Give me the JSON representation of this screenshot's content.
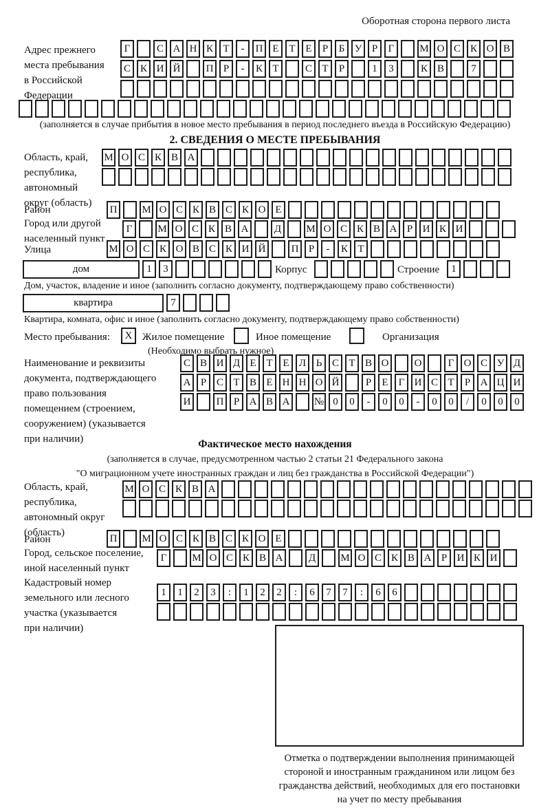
{
  "header": {
    "back_side_note": "Оборотная сторона первого листа"
  },
  "prev_address": {
    "label": "Адрес прежнего\nместа пребывания\nв Российской\nФедерации",
    "note": "(заполняется в случае прибытия в новое место пребывания в период последнего въезда в Российскую Федерацию)",
    "row1": {
      "text": "Г САНКТ-ПЕТЕРБУРГ МОСКОВ",
      "count": 24
    },
    "row2": {
      "text": "СКИЙ ПР-КТ СТР 13 КВ 7",
      "count": 24
    },
    "row3": {
      "text": "",
      "count": 24
    },
    "row4": {
      "text": "",
      "count": 30
    }
  },
  "section2": {
    "title": "2. СВЕДЕНИЯ О МЕСТЕ ПРЕБЫВАНИЯ",
    "oblast_label": "Область, край,\nреспублика,\nавтономный\nокруг (область)",
    "oblast_row1": {
      "text": "МОСКВА",
      "count": 25
    },
    "oblast_row2": {
      "text": "",
      "count": 25
    },
    "rayon_label": "Район",
    "rayon_row": {
      "text": "П МОСКВСКОЕ",
      "count": 24
    },
    "gorod_label": "Город или другой\nнаселенный пункт",
    "gorod_row": {
      "text": "Г МОСКВА Д МОСКВАРИКИ",
      "count": 24
    },
    "ulitsa_label": "Улица",
    "ulitsa_row": {
      "text": "МОСКОВСКИЙ ПР-КТ",
      "count": 24
    },
    "dom_box_label": "дом",
    "dom_row": {
      "text": "13",
      "count": 8
    },
    "korpus_label": "Корпус",
    "korpus_row": {
      "text": "",
      "count": 5
    },
    "stroenie_label": "Строение",
    "stroenie_row": {
      "text": "1",
      "count": 4
    },
    "dom_note": "Дом, участок, владение и иное (заполнить согласно документу, подтверждающему право собственности)",
    "kvartira_box_label": "квартира",
    "kvartira_row": {
      "text": "7",
      "count": 4
    },
    "kvartira_note": "Квартира, комната, офис и иное (заполнить согласно документу, подтверждающему право собственности)",
    "residence": {
      "label": "Место пребывания:",
      "zhiloe_label": "Жилое помещение",
      "zhiloe_value": "X",
      "inoe_label": "Иное помещение",
      "inoe_value": "",
      "org_label": "Организация",
      "org_value": "",
      "choose_note": "(Необходимо выбрать нужное)"
    },
    "doc_label": "Наименование и реквизиты\nдокумента, подтверждающего\nправо пользования\nпомещением (строением,\nсооружением) (указывается\nпри наличии)",
    "doc_row1": {
      "text": "СВИДЕТЕЛЬСТВО О ГОСУД",
      "count": 21
    },
    "doc_row2": {
      "text": "АРСТВЕННОЙ РЕГИСТРАЦИ",
      "count": 21
    },
    "doc_row3": {
      "text": "И ПРАВА №00-00-00/000",
      "count": 21
    }
  },
  "actual_location": {
    "title": "Фактическое место нахождения",
    "note1": "(заполняется в случае, предусмотренном частью 2 статьи 21 Федерального закона",
    "note2": "\"О миграционном учете иностранных граждан и лиц без гражданства в Российской Федерации\")",
    "oblast_label": "Область, край,\nреспублика,\nавтономный округ\n(область)",
    "oblast_row1": {
      "text": "МОСКВА",
      "count": 25
    },
    "oblast_row2": {
      "text": "",
      "count": 25
    },
    "rayon_label": "Район",
    "rayon_row": {
      "text": "П МОСКВСКОЕ",
      "count": 24
    },
    "gorod_label": "Город, сельское поселение,\nиной населенный пункт",
    "gorod_row": {
      "text": "Г МОСКВА Д МОСКВАРИКИ",
      "count": 22
    },
    "kadastr_label": "Кадастровый номер\nземельного или лесного\nучастка (указывается\nпри наличии)",
    "kadastr_row1": {
      "text": "1123:122:677:66",
      "count": 22
    },
    "kadastr_row2": {
      "text": "",
      "count": 22
    }
  },
  "stamp": {
    "caption": "Отметка о подтверждении выполнения принимающей\nстороной и иностранным гражданином или лицом без\nгражданства действий, необходимых для его постановки\nна учет по месту пребывания"
  }
}
